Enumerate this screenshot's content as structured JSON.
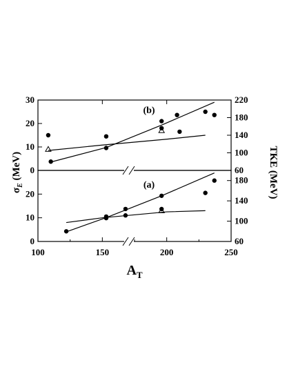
{
  "chart_data": {
    "type": "scatter",
    "xlabel_main": "A",
    "xlabel_sub": "T",
    "ylabel_left": "σ",
    "ylabel_left_sub": "E",
    "ylabel_left_unit": " (MeV)",
    "ylabel_right": "TKE (MeV)",
    "x_ticks": [
      "100",
      "150",
      "200",
      "250"
    ],
    "xlim": [
      100,
      250
    ],
    "left_ticks_b": [
      "0",
      "10",
      "20",
      "30"
    ],
    "left_ticks_a": [
      "0",
      "10",
      "20"
    ],
    "right_ticks_b": [
      "60",
      "100",
      "140",
      "180",
      "220"
    ],
    "right_ticks_a": [
      "60",
      "100",
      "140",
      "180"
    ],
    "panels": [
      {
        "label": "(b)",
        "sigma_ylim": [
          0,
          30
        ],
        "tke_ylim": [
          60,
          220
        ],
        "sigma_filled": [
          [
            108,
            15
          ],
          [
            153,
            14.5
          ],
          [
            196,
            18
          ],
          [
            210,
            16.5
          ],
          [
            230,
            25
          ]
        ],
        "sigma_open": [
          [
            108,
            9
          ],
          [
            196,
            17
          ]
        ],
        "sigma_curve": [
          [
            108,
            8.5
          ],
          [
            150,
            10.8
          ],
          [
            200,
            13.3
          ],
          [
            230,
            15
          ]
        ],
        "tke_filled": [
          [
            110,
            80
          ],
          [
            153,
            111
          ],
          [
            196,
            172
          ],
          [
            208,
            186
          ],
          [
            237,
            186
          ]
        ],
        "tke_curve": [
          [
            110,
            79
          ],
          [
            153,
            112
          ],
          [
            196,
            163
          ],
          [
            237,
            215
          ]
        ]
      },
      {
        "label": "(a)",
        "sigma_ylim": [
          0,
          30
        ],
        "tke_ylim": [
          60,
          200
        ],
        "sigma_filled": [
          [
            153,
            10.5
          ],
          [
            168,
            11
          ],
          [
            196,
            13.7
          ],
          [
            230,
            20.5
          ]
        ],
        "sigma_open": [
          [
            196,
            13
          ]
        ],
        "sigma_curve": [
          [
            122,
            8
          ],
          [
            150,
            10
          ],
          [
            200,
            12.5
          ],
          [
            230,
            13
          ]
        ],
        "tke_filled": [
          [
            122,
            80
          ],
          [
            153,
            106
          ],
          [
            168,
            124
          ],
          [
            196,
            150
          ],
          [
            237,
            180
          ]
        ],
        "tke_curve": [
          [
            122,
            79
          ],
          [
            153,
            107
          ],
          [
            196,
            150
          ],
          [
            237,
            195
          ]
        ]
      }
    ]
  }
}
